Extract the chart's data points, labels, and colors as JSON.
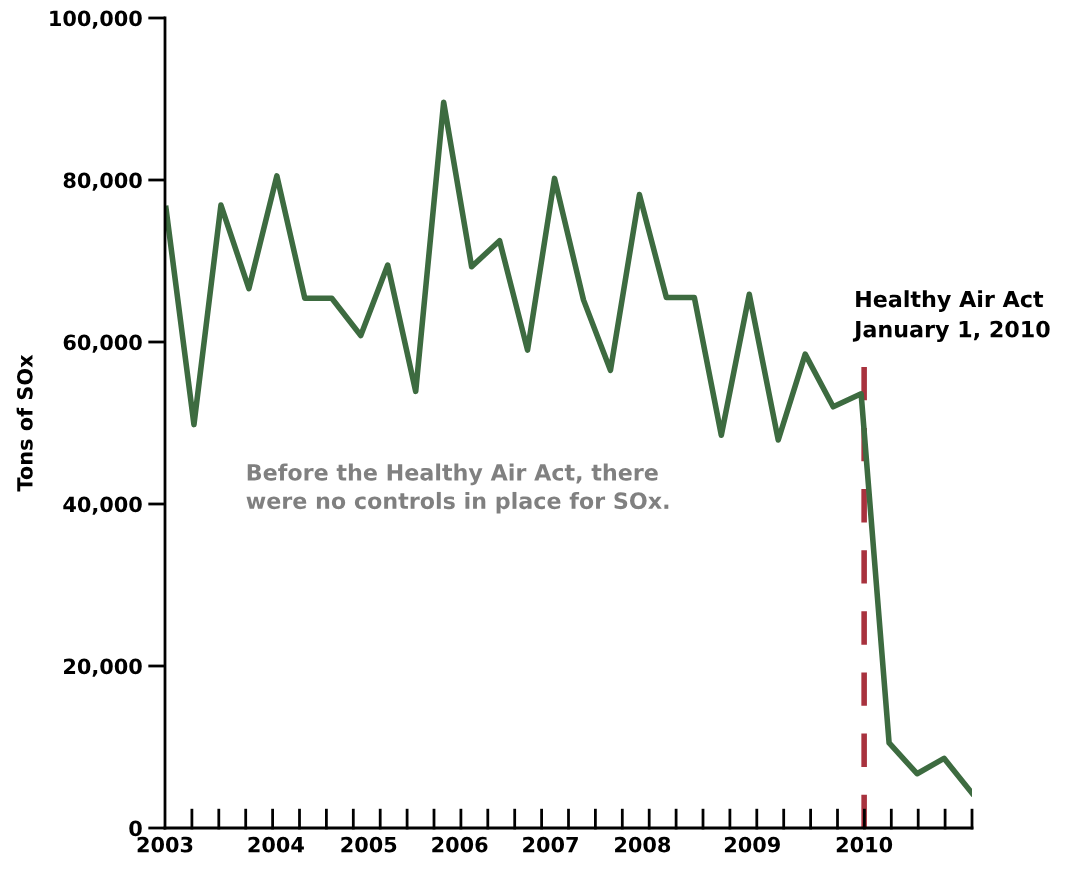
{
  "chart_data": {
    "type": "line",
    "ylabel": "Tons of SOx",
    "x": [
      2003.01,
      2003.29,
      2003.56,
      2003.84,
      2004.12,
      2004.4,
      2004.67,
      2004.96,
      2005.23,
      2005.51,
      2005.79,
      2006.07,
      2006.35,
      2006.63,
      2006.9,
      2007.19,
      2007.46,
      2007.75,
      2008.02,
      2008.3,
      2008.57,
      2008.85,
      2009.14,
      2009.41,
      2009.69,
      2009.97,
      2010.25,
      2010.53,
      2010.8,
      2011.08
    ],
    "series": [
      {
        "color": "#3d6b40",
        "values": [
          76500,
          49800,
          76900,
          66600,
          80500,
          65400,
          65400,
          60800,
          69500,
          53900,
          89600,
          69300,
          72500,
          59000,
          80200,
          65200,
          56500,
          78200,
          65500,
          65500,
          48500,
          65900,
          47900,
          58500,
          52000,
          53600,
          10500,
          6700,
          8600,
          4300
        ]
      }
    ],
    "xlim": [
      2003,
      2011.08
    ],
    "ylim": [
      0,
      100000
    ],
    "xticks": [
      {
        "value": 2003,
        "label": "2003"
      },
      {
        "value": 2004.11,
        "label": "2004"
      },
      {
        "value": 2005.04,
        "label": "2005"
      },
      {
        "value": 2005.95,
        "label": "2006"
      },
      {
        "value": 2006.86,
        "label": "2007"
      },
      {
        "value": 2007.78,
        "label": "2008"
      },
      {
        "value": 2008.88,
        "label": "2009"
      },
      {
        "value": 2010.0,
        "label": "2010"
      }
    ],
    "yticks": [
      {
        "value": 0,
        "label": "0"
      },
      {
        "value": 20000,
        "label": "20,000"
      },
      {
        "value": 40000,
        "label": "40,000"
      },
      {
        "value": 60000,
        "label": "60,000"
      },
      {
        "value": 80000,
        "label": "80,000"
      },
      {
        "value": 100000,
        "label": "100,000"
      }
    ],
    "ref_lines": [
      {
        "axis": "x",
        "value": 2010.0,
        "label": "Healthy Air Act\nJanuary 1, 2010",
        "color": "#a8323e",
        "line_style": "dashed"
      }
    ],
    "annotations": [
      "Before the Healthy Air Act, there\nwere no controls in place for SOx."
    ],
    "grid": false,
    "legend": false,
    "marker": "none",
    "line_style": "solid"
  }
}
